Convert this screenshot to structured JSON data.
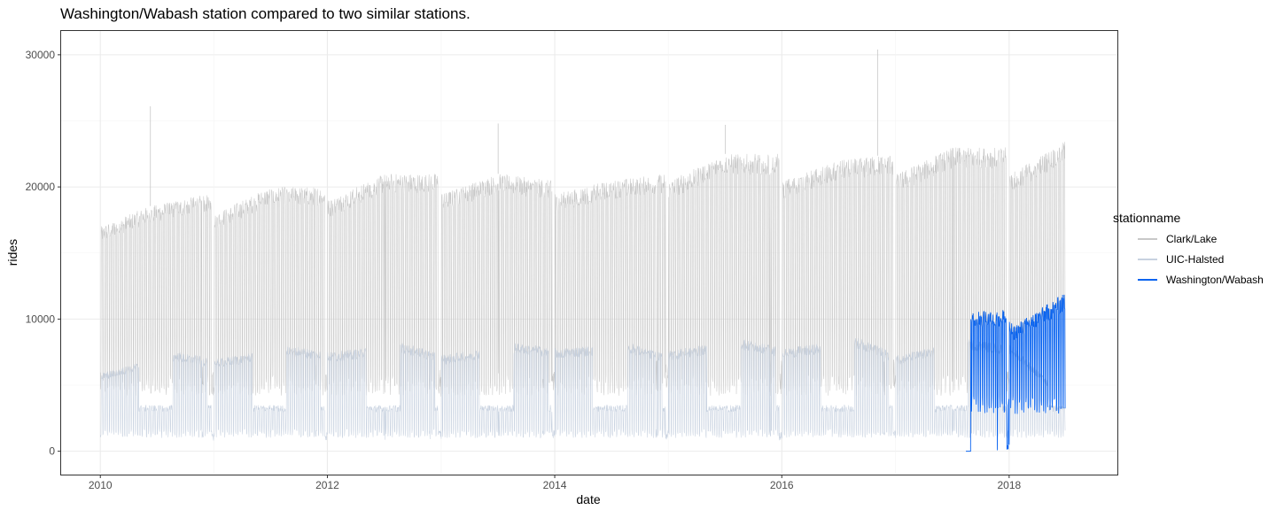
{
  "chart_data": {
    "type": "line",
    "title": "Washington/Wabash station compared to two similar stations.",
    "xlabel": "date",
    "ylabel": "rides",
    "x_ticks": [
      "2010",
      "2012",
      "2014",
      "2016",
      "2018"
    ],
    "y_ticks": [
      "0",
      "10000",
      "20000",
      "30000"
    ],
    "xlim": [
      "2009-08-28",
      "2018-12-15"
    ],
    "ylim": [
      -1700,
      31800
    ],
    "grid": true,
    "legend_title": "stationname",
    "legend_position": "right",
    "series": [
      {
        "name": "Clark/Lake",
        "color": "#c8c8c8",
        "date_range": [
          "2010-01-01",
          "2018-06-30"
        ],
        "weekday_level": [
          [
            "2010-01-01",
            17000
          ],
          [
            "2010-06-01",
            18500
          ],
          [
            "2010-12-15",
            19500
          ],
          [
            "2011-01-05",
            18000
          ],
          [
            "2011-07-01",
            20000
          ],
          [
            "2011-12-20",
            20000
          ],
          [
            "2012-01-05",
            19000
          ],
          [
            "2012-07-01",
            21000
          ],
          [
            "2012-12-20",
            21000
          ],
          [
            "2013-01-05",
            19500
          ],
          [
            "2013-07-01",
            21000
          ],
          [
            "2013-12-20",
            20500
          ],
          [
            "2014-01-05",
            19500
          ],
          [
            "2014-07-01",
            20500
          ],
          [
            "2014-12-20",
            21000
          ],
          [
            "2015-01-05",
            20500
          ],
          [
            "2015-07-01",
            22500
          ],
          [
            "2015-12-20",
            22500
          ],
          [
            "2016-01-05",
            20500
          ],
          [
            "2016-07-01",
            22000
          ],
          [
            "2016-12-20",
            22500
          ],
          [
            "2017-01-05",
            21000
          ],
          [
            "2017-07-01",
            23000
          ],
          [
            "2017-12-20",
            23000
          ],
          [
            "2018-01-05",
            21000
          ],
          [
            "2018-06-30",
            23500
          ]
        ],
        "weekend_level": 5000,
        "spikes": [
          [
            "2010-06-11",
            26100
          ],
          [
            "2013-07-03",
            24800
          ],
          [
            "2015-07-03",
            24700
          ],
          [
            "2016-11-04",
            30400
          ]
        ]
      },
      {
        "name": "UIC-Halsted",
        "color": "#c8d2e0",
        "date_range": [
          "2010-01-01",
          "2018-06-30"
        ],
        "term_weekday_level": [
          [
            "2010-01-15",
            6000
          ],
          [
            "2010-09-01",
            7500
          ],
          [
            "2011-01-15",
            7000
          ],
          [
            "2011-09-01",
            8000
          ],
          [
            "2012-01-15",
            7500
          ],
          [
            "2012-09-01",
            8200
          ],
          [
            "2013-01-15",
            7300
          ],
          [
            "2013-09-01",
            8200
          ],
          [
            "2014-01-15",
            7800
          ],
          [
            "2014-09-01",
            8200
          ],
          [
            "2014-12-01",
            7500
          ],
          [
            "2015-09-01",
            8500
          ],
          [
            "2016-01-15",
            7800
          ],
          [
            "2016-09-01",
            8600
          ],
          [
            "2017-01-15",
            7300
          ],
          [
            "2017-09-01",
            8500
          ],
          [
            "2018-01-15",
            8000
          ],
          [
            "2018-06-30",
            4000
          ]
        ],
        "summer_weekday_level": 3500,
        "weekend_level": 1500
      },
      {
        "name": "Washington/Wabash",
        "color": "#0a64f0",
        "date_range": [
          "2017-08-15",
          "2018-06-30"
        ],
        "weekday_level": [
          [
            "2017-09-01",
            10500
          ],
          [
            "2017-12-15",
            10800
          ],
          [
            "2018-01-15",
            9500
          ],
          [
            "2018-06-30",
            12000
          ]
        ],
        "weekend_level": 3500,
        "zero_before": "2017-08-31"
      }
    ]
  }
}
